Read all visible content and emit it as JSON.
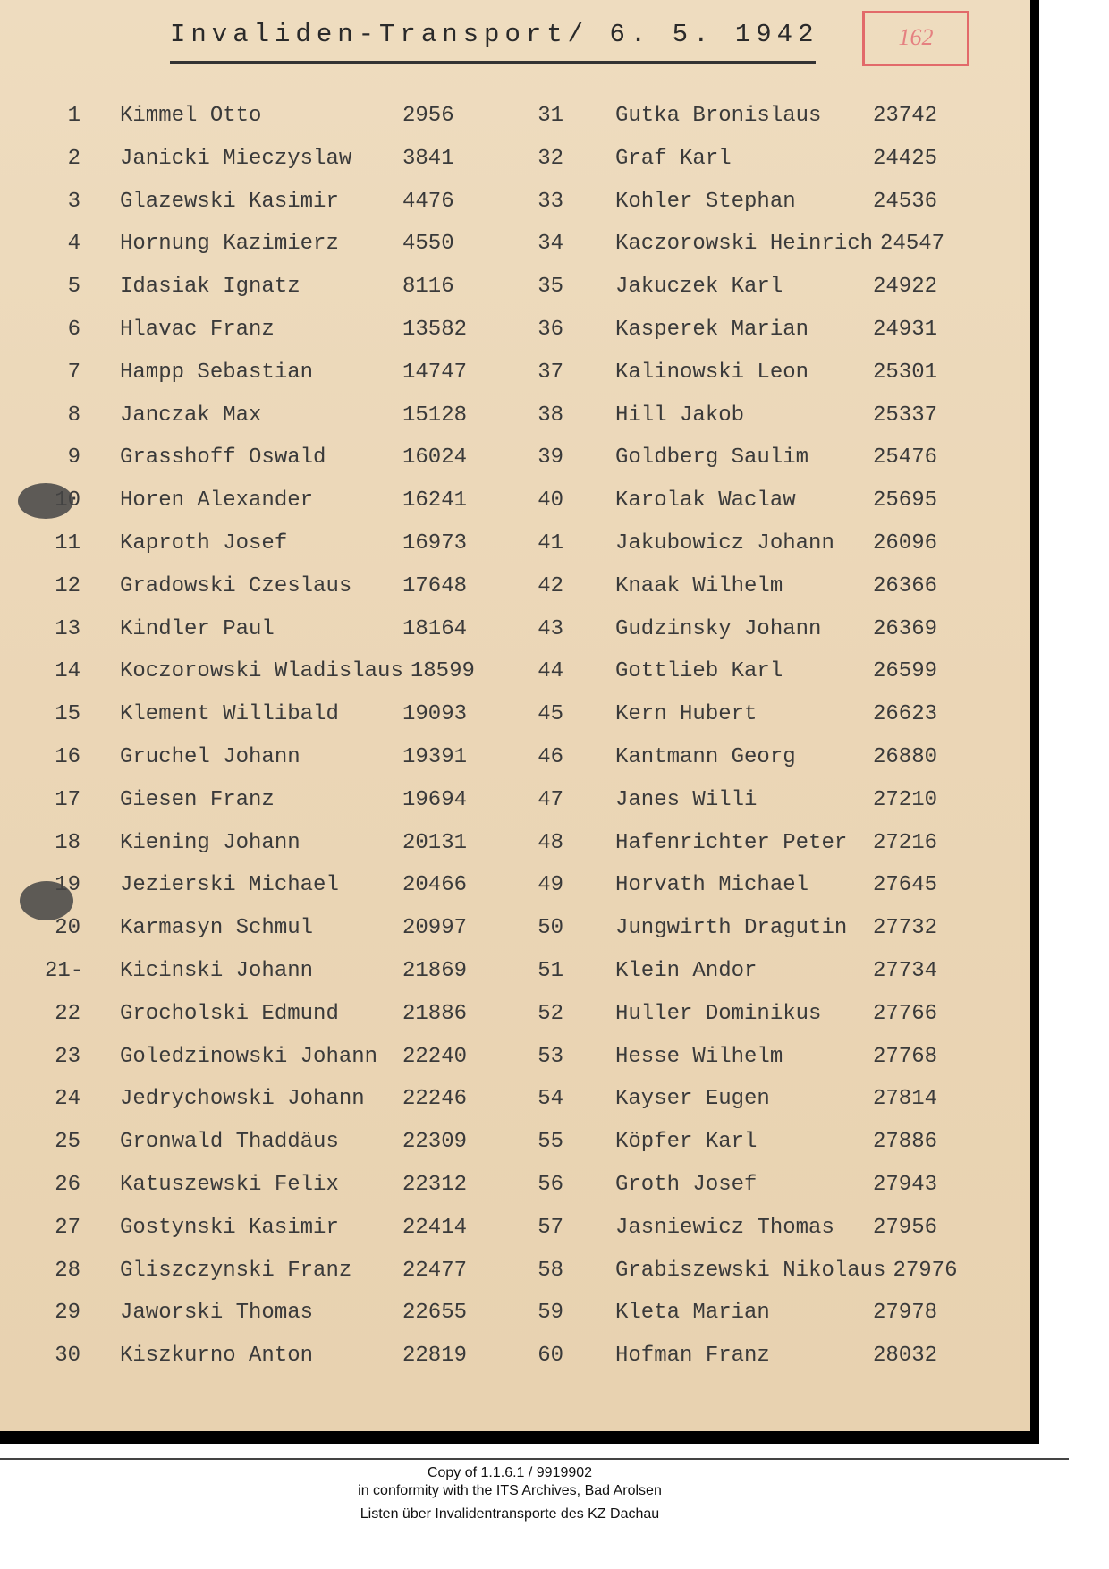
{
  "document": {
    "title": "Invaliden-Transport/ 6. 5. 1942",
    "stamp": "162"
  },
  "entries": [
    {
      "no": "1",
      "name": "Kimmel Otto",
      "number": "2956"
    },
    {
      "no": "2",
      "name": "Janicki Mieczyslaw",
      "number": "3841"
    },
    {
      "no": "3",
      "name": "Glazewski Kasimir",
      "number": "4476"
    },
    {
      "no": "4",
      "name": "Hornung Kazimierz",
      "number": "4550"
    },
    {
      "no": "5",
      "name": "Idasiak Ignatz",
      "number": "8116"
    },
    {
      "no": "6",
      "name": "Hlavac Franz",
      "number": "13582"
    },
    {
      "no": "7",
      "name": "Hampp Sebastian",
      "number": "14747"
    },
    {
      "no": "8",
      "name": "Janczak Max",
      "number": "15128"
    },
    {
      "no": "9",
      "name": "Grasshoff Oswald",
      "number": "16024"
    },
    {
      "no": "10",
      "name": "Horen Alexander",
      "number": "16241"
    },
    {
      "no": "11",
      "name": "Kaproth Josef",
      "number": "16973"
    },
    {
      "no": "12",
      "name": "Gradowski Czeslaus",
      "number": "17648"
    },
    {
      "no": "13",
      "name": "Kindler Paul",
      "number": "18164"
    },
    {
      "no": "14",
      "name": "Koczorowski Wladislaus",
      "number": "18599"
    },
    {
      "no": "15",
      "name": "Klement Willibald",
      "number": "19093"
    },
    {
      "no": "16",
      "name": "Gruchel Johann",
      "number": "19391"
    },
    {
      "no": "17",
      "name": "Giesen Franz",
      "number": "19694"
    },
    {
      "no": "18",
      "name": "Kiening Johann",
      "number": "20131"
    },
    {
      "no": "19",
      "name": "Jezierski Michael",
      "number": "20466"
    },
    {
      "no": "20",
      "name": "Karmasyn Schmul",
      "number": "20997"
    },
    {
      "no": "21-",
      "name": "Kicinski Johann",
      "number": "21869"
    },
    {
      "no": "22",
      "name": "Grocholski Edmund",
      "number": "21886"
    },
    {
      "no": "23",
      "name": "Goledzinowski Johann",
      "number": "22240"
    },
    {
      "no": "24",
      "name": "Jedrychowski Johann",
      "number": "22246"
    },
    {
      "no": "25",
      "name": "Gronwald Thaddäus",
      "number": "22309"
    },
    {
      "no": "26",
      "name": "Katuszewski Felix",
      "number": "22312"
    },
    {
      "no": "27",
      "name": "Gostynski Kasimir",
      "number": "22414"
    },
    {
      "no": "28",
      "name": "Gliszczynski Franz",
      "number": "22477"
    },
    {
      "no": "29",
      "name": "Jaworski Thomas",
      "number": "22655"
    },
    {
      "no": "30",
      "name": "Kiszkurno Anton",
      "number": "22819"
    },
    {
      "no": "31",
      "name": "Gutka Bronislaus",
      "number": "23742"
    },
    {
      "no": "32",
      "name": "Graf Karl",
      "number": "24425"
    },
    {
      "no": "33",
      "name": "Kohler Stephan",
      "number": "24536"
    },
    {
      "no": "34",
      "name": "Kaczorowski Heinrich",
      "number": "24547"
    },
    {
      "no": "35",
      "name": "Jakuczek Karl",
      "number": "24922"
    },
    {
      "no": "36",
      "name": "Kasperek Marian",
      "number": "24931"
    },
    {
      "no": "37",
      "name": "Kalinowski Leon",
      "number": "25301"
    },
    {
      "no": "38",
      "name": "Hill Jakob",
      "number": "25337"
    },
    {
      "no": "39",
      "name": "Goldberg Saulim",
      "number": "25476"
    },
    {
      "no": "40",
      "name": "Karolak Waclaw",
      "number": "25695"
    },
    {
      "no": "41",
      "name": "Jakubowicz Johann",
      "number": "26096"
    },
    {
      "no": "42",
      "name": "Knaak Wilhelm",
      "number": "26366"
    },
    {
      "no": "43",
      "name": "Gudzinsky Johann",
      "number": "26369"
    },
    {
      "no": "44",
      "name": "Gottlieb Karl",
      "number": "26599"
    },
    {
      "no": "45",
      "name": "Kern Hubert",
      "number": "26623"
    },
    {
      "no": "46",
      "name": "Kantmann Georg",
      "number": "26880"
    },
    {
      "no": "47",
      "name": "Janes Willi",
      "number": "27210"
    },
    {
      "no": "48",
      "name": "Hafenrichter Peter",
      "number": "27216"
    },
    {
      "no": "49",
      "name": "Horvath Michael",
      "number": "27645"
    },
    {
      "no": "50",
      "name": "Jungwirth Dragutin",
      "number": "27732"
    },
    {
      "no": "51",
      "name": "Klein Andor",
      "number": "27734"
    },
    {
      "no": "52",
      "name": "Huller Dominikus",
      "number": "27766"
    },
    {
      "no": "53",
      "name": "Hesse Wilhelm",
      "number": "27768"
    },
    {
      "no": "54",
      "name": "Kayser Eugen",
      "number": "27814"
    },
    {
      "no": "55",
      "name": "Köpfer Karl",
      "number": "27886"
    },
    {
      "no": "56",
      "name": "Groth Josef",
      "number": "27943"
    },
    {
      "no": "57",
      "name": "Jasniewicz Thomas",
      "number": "27956"
    },
    {
      "no": "58",
      "name": "Grabiszewski Nikolaus",
      "number": "27976"
    },
    {
      "no": "59",
      "name": "Kleta Marian",
      "number": "27978"
    },
    {
      "no": "60",
      "name": "Hofman Franz",
      "number": "28032"
    }
  ],
  "footer": {
    "line1": "Copy of 1.1.6.1 / 9919902",
    "line2": "in conformity with the ITS Archives, Bad Arolsen",
    "line3": "Listen über Invalidentransporte des KZ Dachau"
  }
}
